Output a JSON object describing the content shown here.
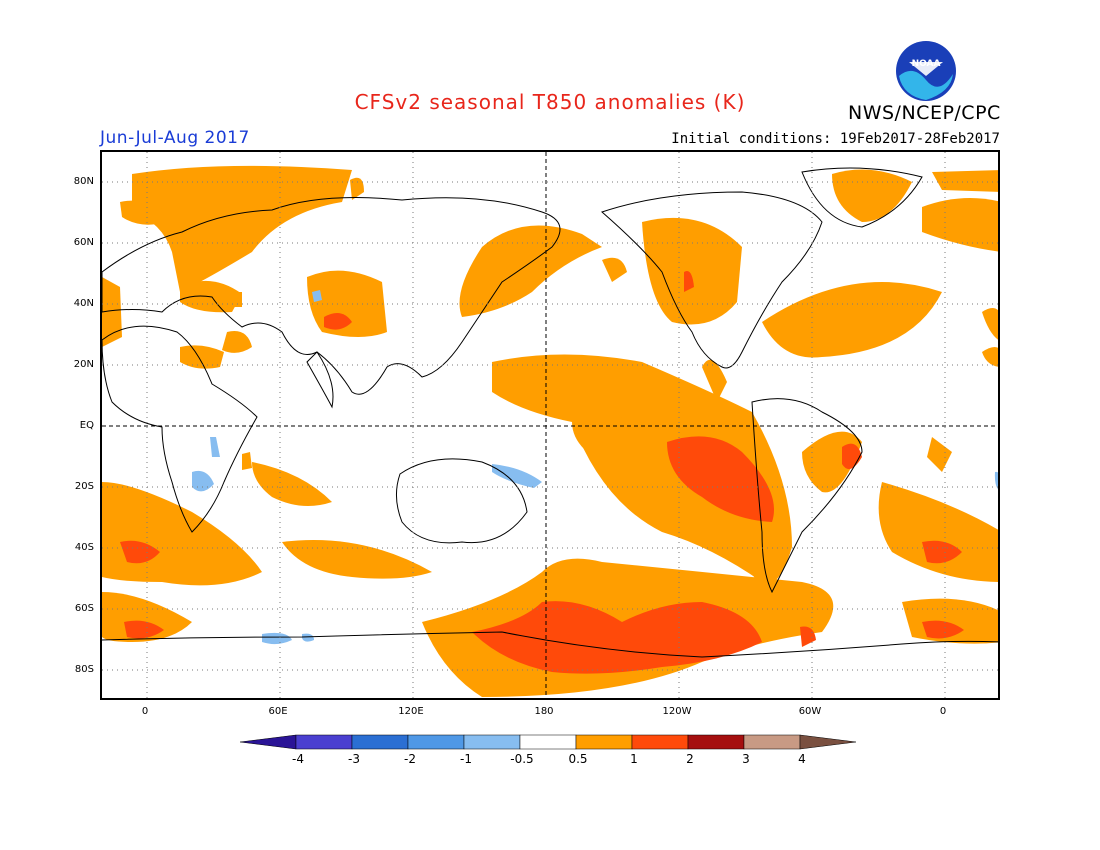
{
  "header": {
    "title": "CFSv2 seasonal T850 anomalies (K)",
    "agency": "NWS/NCEP/CPC",
    "season": "Jun-Jul-Aug 2017",
    "initial_conditions": "Initial conditions: 19Feb2017-28Feb2017",
    "logo_text": "NOAA"
  },
  "map": {
    "lat_labels": [
      "80N",
      "60N",
      "40N",
      "20N",
      "EQ",
      "20S",
      "40S",
      "60S",
      "80S"
    ],
    "lon_labels": [
      "0",
      "60E",
      "120E",
      "180",
      "120W",
      "60W",
      "0"
    ],
    "colors": {
      "warm1": "#ff9e00",
      "warm2": "#ff4a0a",
      "warm3": "#a50f0f",
      "warm4": "#c89a84",
      "cold1": "#87bdf0",
      "cold2": "#4f98e6",
      "cold3": "#2b6fd3",
      "cold4": "#4a3fd0",
      "land_line": "#000000",
      "grid": "#7a7a7a"
    }
  },
  "colorbar": {
    "labels": [
      "-4",
      "-3",
      "-2",
      "-1",
      "-0.5",
      "0.5",
      "1",
      "2",
      "3",
      "4"
    ],
    "colors": [
      "#2a1496",
      "#4a3fd0",
      "#2b6fd3",
      "#4f98e6",
      "#87bdf0",
      "#ffffff",
      "#ff9e00",
      "#ff4a0a",
      "#a50f0f",
      "#c89a84",
      "#7a5040"
    ]
  }
}
